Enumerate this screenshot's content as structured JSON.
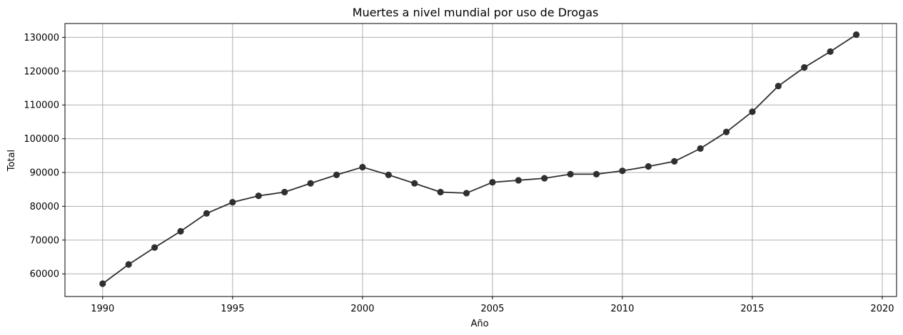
{
  "chart_data": {
    "type": "line",
    "title": "Muertes a nivel mundial por uso de Drogas",
    "xlabel": "Año",
    "ylabel": "Total",
    "xlim": [
      1988.55,
      1252.45
    ],
    "ylim": [
      53300,
      134100
    ],
    "grid": true,
    "line_color": "#2d302f",
    "marker": "circle",
    "x_ticks": [
      1990,
      1995,
      2000,
      2005,
      2010,
      2015,
      2020
    ],
    "y_ticks": [
      60000,
      70000,
      80000,
      90000,
      100000,
      110000,
      120000,
      130000
    ],
    "x": [
      1990,
      1991,
      1992,
      1993,
      1994,
      1995,
      1996,
      1997,
      1998,
      1999,
      2000,
      2001,
      2002,
      2003,
      2004,
      2005,
      2006,
      2007,
      2008,
      2009,
      2010,
      2011,
      2012,
      2013,
      2014,
      2015,
      2016,
      2017,
      2018,
      2019
    ],
    "series": [
      {
        "values": [
          57100,
          62800,
          67800,
          72600,
          77900,
          81200,
          83100,
          84200,
          86800,
          89300,
          91600,
          89300,
          86800,
          84200,
          83900,
          87100,
          87700,
          88300,
          89500,
          89500,
          90500,
          91800,
          93300,
          97100,
          102000,
          108000,
          115600,
          121100,
          125800,
          130800
        ]
      }
    ]
  }
}
